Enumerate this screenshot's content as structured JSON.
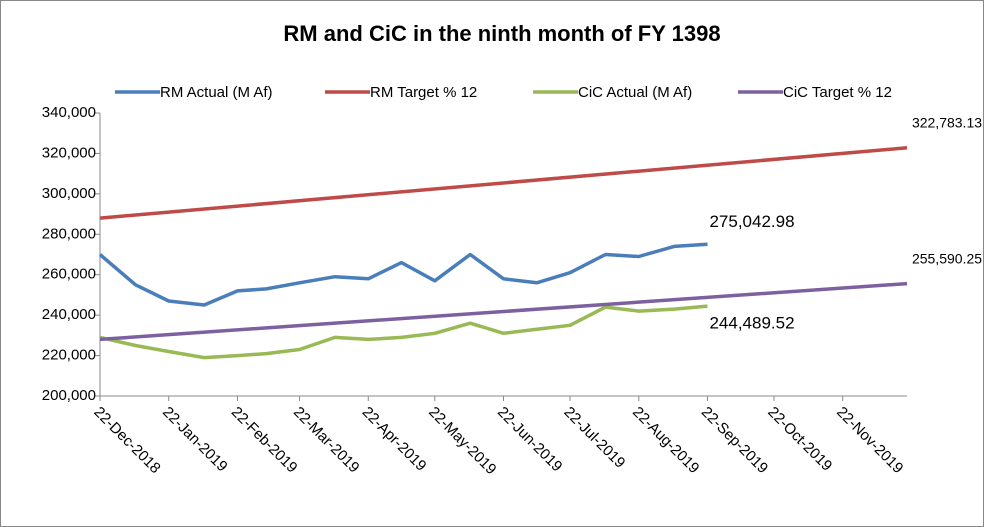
{
  "chart_data": {
    "type": "line",
    "title": "RM and CiC  in the ninth  month of  FY 1398",
    "xlim": [
      "2018-12-22",
      "2019-12-21"
    ],
    "xticks": [
      {
        "value": "2018-12-22",
        "label": "22-Dec-2018"
      },
      {
        "value": "2019-01-22",
        "label": "22-Jan-2019"
      },
      {
        "value": "2019-02-22",
        "label": "22-Feb-2019"
      },
      {
        "value": "2019-03-22",
        "label": "22-Mar-2019"
      },
      {
        "value": "2019-04-22",
        "label": "22-Apr-2019"
      },
      {
        "value": "2019-05-22",
        "label": "22-May-2019"
      },
      {
        "value": "2019-06-22",
        "label": "22-Jun-2019"
      },
      {
        "value": "2019-07-22",
        "label": "22-Jul-2019"
      },
      {
        "value": "2019-08-22",
        "label": "22-Aug-2019"
      },
      {
        "value": "2019-09-22",
        "label": "22-Sep-2019"
      },
      {
        "value": "2019-10-22",
        "label": "22-Oct-2019"
      },
      {
        "value": "2019-11-22",
        "label": "22-Nov-2019"
      }
    ],
    "ylim": [
      200000,
      340000
    ],
    "yticks": [
      {
        "value": 200000,
        "label": "200,000"
      },
      {
        "value": 220000,
        "label": "220,000"
      },
      {
        "value": 240000,
        "label": "240,000"
      },
      {
        "value": 260000,
        "label": "260,000"
      },
      {
        "value": 280000,
        "label": "280,000"
      },
      {
        "value": 300000,
        "label": "300,000"
      },
      {
        "value": 320000,
        "label": "320,000"
      },
      {
        "value": 340000,
        "label": "340,000"
      }
    ],
    "legend": "top",
    "series": [
      {
        "name": "RM Actual (M Af)",
        "color": "#4a7ebb",
        "x": [
          "2018-12-22",
          "2019-01-07",
          "2019-01-22",
          "2019-02-07",
          "2019-02-22",
          "2019-03-07",
          "2019-03-22",
          "2019-04-07",
          "2019-04-22",
          "2019-05-07",
          "2019-05-22",
          "2019-06-07",
          "2019-06-22",
          "2019-07-07",
          "2019-07-22",
          "2019-08-07",
          "2019-08-22",
          "2019-09-07",
          "2019-09-22"
        ],
        "values": [
          270000,
          255000,
          247000,
          245000,
          252000,
          253000,
          256000,
          259000,
          258000,
          266000,
          257000,
          270000,
          258000,
          256000,
          261000,
          270000,
          269000,
          274000,
          275042.98
        ],
        "value_labels": [
          null,
          null,
          null,
          null,
          null,
          null,
          null,
          null,
          null,
          null,
          null,
          null,
          null,
          null,
          null,
          null,
          null,
          null,
          "275,042.98"
        ]
      },
      {
        "name": "RM Target  % 12",
        "color": "#be4b48",
        "x": [
          "2018-12-22",
          "2019-12-21"
        ],
        "values": [
          288000,
          322783.13
        ],
        "value_labels": [
          null,
          "322,783.13"
        ]
      },
      {
        "name": "CiC Actual (M Af)",
        "color": "#98b954",
        "x": [
          "2018-12-22",
          "2019-01-07",
          "2019-01-22",
          "2019-02-07",
          "2019-02-22",
          "2019-03-07",
          "2019-03-22",
          "2019-04-07",
          "2019-04-22",
          "2019-05-07",
          "2019-05-22",
          "2019-06-07",
          "2019-06-22",
          "2019-07-07",
          "2019-07-22",
          "2019-08-07",
          "2019-08-22",
          "2019-09-07",
          "2019-09-22"
        ],
        "values": [
          229000,
          225000,
          222000,
          219000,
          220000,
          221000,
          223000,
          229000,
          228000,
          229000,
          231000,
          236000,
          231000,
          233000,
          235000,
          244000,
          242000,
          243000,
          244489.52
        ],
        "value_labels": [
          null,
          null,
          null,
          null,
          null,
          null,
          null,
          null,
          null,
          null,
          null,
          null,
          null,
          null,
          null,
          null,
          null,
          null,
          "244,489.52"
        ]
      },
      {
        "name": "CiC Target  % 12",
        "color": "#7d60a0",
        "x": [
          "2018-12-22",
          "2019-12-21"
        ],
        "values": [
          228000,
          255590.25
        ],
        "value_labels": [
          null,
          "255,590.25"
        ]
      }
    ]
  }
}
